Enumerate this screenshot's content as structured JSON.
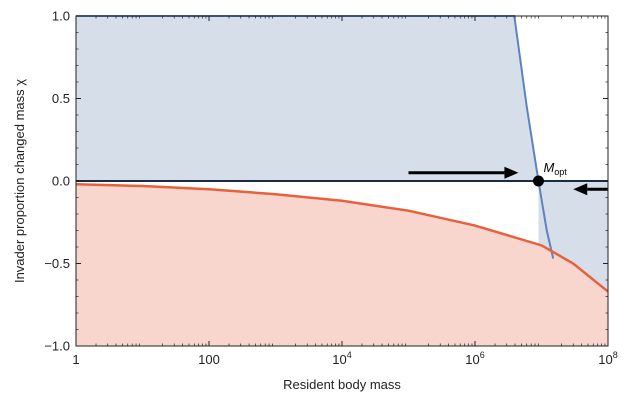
{
  "chart_data": {
    "type": "area",
    "title": "",
    "xlabel": "Resident body mass",
    "ylabel": "Invader proportion changed mass χ",
    "xscale": "log",
    "xlim": [
      1,
      100000000
    ],
    "ylim": [
      -1.0,
      1.0
    ],
    "x_ticks": [
      1,
      100,
      10000,
      1000000,
      100000000
    ],
    "x_tick_labels": [
      {
        "base": "1",
        "exp": ""
      },
      {
        "base": "100",
        "exp": ""
      },
      {
        "base": "10",
        "exp": "4"
      },
      {
        "base": "10",
        "exp": "6"
      },
      {
        "base": "10",
        "exp": "8"
      }
    ],
    "y_ticks": [
      -1.0,
      -0.5,
      0.0,
      0.5,
      1.0
    ],
    "y_tick_labels": [
      "−1.0",
      "−0.5",
      "0.0",
      "0.5",
      "1.0"
    ],
    "grid": false,
    "series": [
      {
        "color": "#5b84bd",
        "fill": "#d6deea",
        "x": [
          1,
          3000000,
          3900000,
          6000000,
          9000000,
          12000000,
          15000000
        ],
        "y": [
          1.0,
          1.0,
          1.0,
          0.45,
          0.0,
          -0.3,
          -0.47
        ]
      },
      {
        "color": "#5b84bd",
        "x": [
          1,
          100000000
        ],
        "y": [
          0.0,
          0.0
        ]
      },
      {
        "color": "#e8603c",
        "fill": "#f8d6cd",
        "x": [
          1,
          10,
          100,
          1000,
          10000,
          100000,
          1000000,
          10000000,
          30000000,
          100000000
        ],
        "y": [
          -0.02,
          -0.03,
          -0.05,
          -0.08,
          -0.12,
          -0.18,
          -0.27,
          -0.39,
          -0.5,
          -0.67
        ]
      }
    ],
    "shaded_region_right": {
      "fill": "#d6deea",
      "x_from": 9000000,
      "x_to": 100000000
    },
    "point": {
      "x": 9000000,
      "y": 0.0,
      "label_main": "M",
      "label_sub": "opt"
    },
    "arrows": [
      {
        "x_from": 100000,
        "x_to": 4500000,
        "y": 0.05,
        "direction": "right"
      },
      {
        "x_from": 100000000,
        "x_to": 30000000,
        "y": -0.05,
        "direction": "left"
      }
    ]
  }
}
